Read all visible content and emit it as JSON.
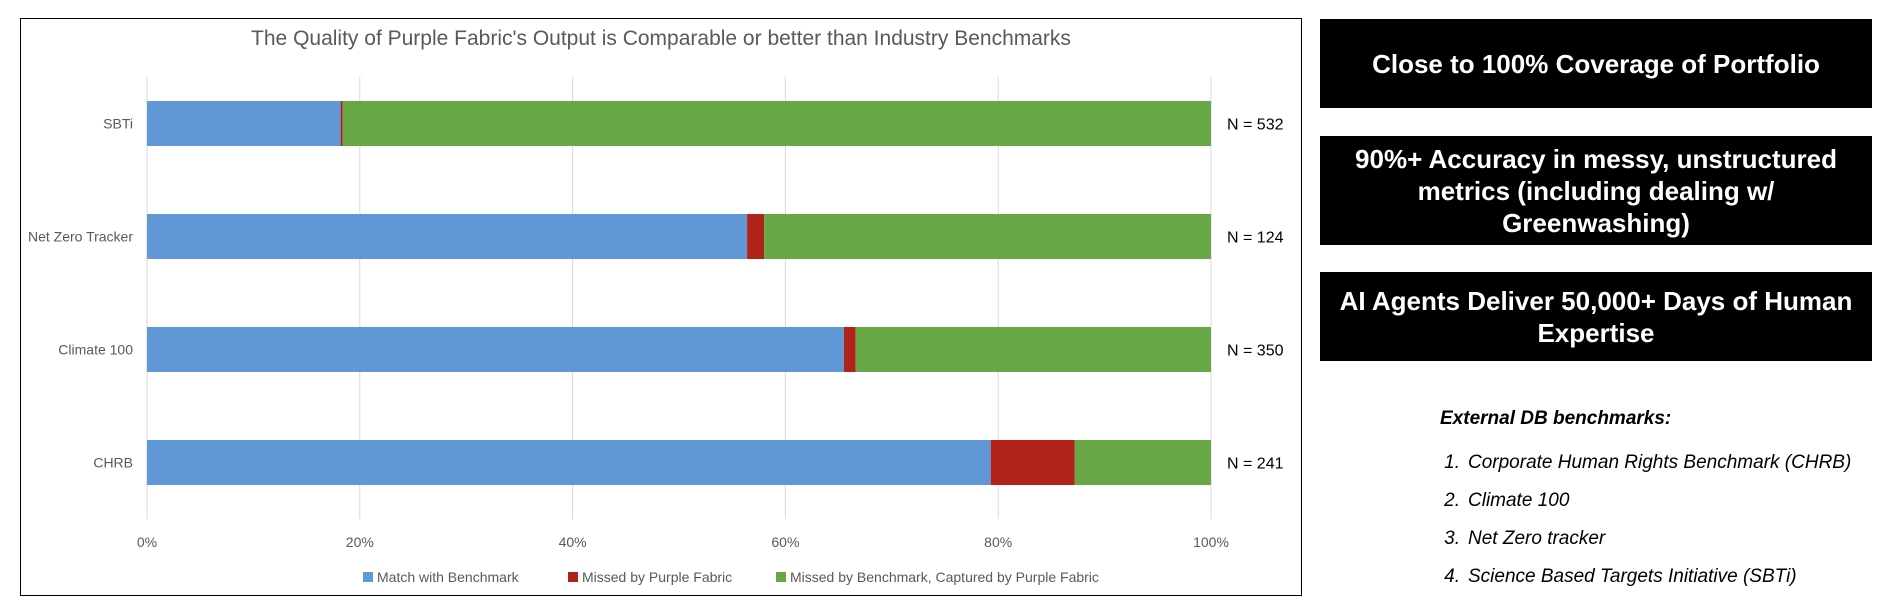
{
  "chart_data": {
    "type": "bar",
    "orientation": "horizontal",
    "stacked": true,
    "title": "The Quality of Purple Fabric's Output is Comparable or better than Industry Benchmarks",
    "categories": [
      "SBTi",
      "Net Zero Tracker",
      "Climate 100",
      "CHRB"
    ],
    "series": [
      {
        "name": "Match with Benchmark",
        "color": "#6097D6",
        "values": [
          18.2,
          56.4,
          65.5,
          79.3
        ]
      },
      {
        "name": "Missed by Purple Fabric",
        "color": "#B0231A",
        "values": [
          0.2,
          1.6,
          1.1,
          7.9
        ]
      },
      {
        "name": "Missed by Benchmark, Captured by Purple Fabric",
        "color": "#67A745",
        "values": [
          81.6,
          42.0,
          33.4,
          12.8
        ]
      }
    ],
    "annotations": [
      "N = 532",
      "N = 124",
      "N = 350",
      "N = 241"
    ],
    "x_ticks": [
      "0%",
      "20%",
      "40%",
      "60%",
      "80%",
      "100%"
    ],
    "xlim": [
      0,
      100
    ],
    "grid": true,
    "legend_position": "bottom"
  },
  "highlights": [
    "Close to 100% Coverage of Portfolio",
    "90%+ Accuracy in messy, unstructured metrics (including dealing w/ Greenwashing)",
    "AI Agents Deliver 50,000+ Days of Human Expertise"
  ],
  "benchmarks": {
    "title": "External DB benchmarks:",
    "items": [
      {
        "num": "1.",
        "text": "Corporate Human Rights Benchmark (CHRB)"
      },
      {
        "num": "2.",
        "text": "Climate 100"
      },
      {
        "num": "3.",
        "text": "Net Zero tracker"
      },
      {
        "num": "4.",
        "text": "Science Based Targets Initiative (SBTi)"
      }
    ]
  }
}
